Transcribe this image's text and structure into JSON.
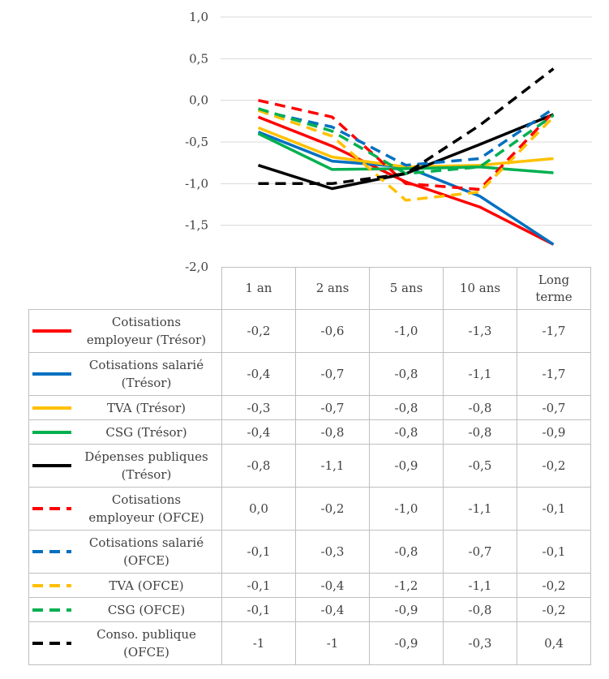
{
  "chart_data": {
    "type": "line",
    "categories": [
      "1 an",
      "2 ans",
      "5 ans",
      "10 ans",
      "Long terme"
    ],
    "ylim": [
      -2.0,
      1.0
    ],
    "yticks": [
      "1,0",
      "0,5",
      "0,0",
      "-0,5",
      "-1,0",
      "-1,5",
      "-2,0"
    ],
    "ytick_values": [
      1.0,
      0.5,
      0.0,
      -0.5,
      -1.0,
      -1.5,
      -2.0
    ],
    "grid": true,
    "legend": "data table below chart",
    "series": [
      {
        "name": "Cotisations employeur (Trésor)",
        "color": "#ff0000",
        "style": "solid",
        "values": [
          -0.2,
          -0.55,
          -0.98,
          -1.28,
          -1.73
        ],
        "labels": [
          "-0,2",
          "-0,6",
          "-1,0",
          "-1,3",
          "-1,7"
        ]
      },
      {
        "name": "Cotisations salarié (Trésor)",
        "color": "#0070c0",
        "style": "solid",
        "values": [
          -0.38,
          -0.73,
          -0.8,
          -1.15,
          -1.73
        ],
        "labels": [
          "-0,4",
          "-0,7",
          "-0,8",
          "-1,1",
          "-1,7"
        ]
      },
      {
        "name": "TVA (Trésor)",
        "color": "#ffc000",
        "style": "solid",
        "values": [
          -0.33,
          -0.68,
          -0.8,
          -0.78,
          -0.7
        ],
        "labels": [
          "-0,3",
          "-0,7",
          "-0,8",
          "-0,8",
          "-0,7"
        ]
      },
      {
        "name": "CSG (Trésor)",
        "color": "#00b050",
        "style": "solid",
        "values": [
          -0.4,
          -0.83,
          -0.82,
          -0.8,
          -0.87
        ],
        "labels": [
          "-0,4",
          "-0,8",
          "-0,8",
          "-0,8",
          "-0,9"
        ]
      },
      {
        "name": "Dépenses publiques (Trésor)",
        "color": "#000000",
        "style": "solid",
        "values": [
          -0.78,
          -1.06,
          -0.88,
          -0.53,
          -0.17
        ],
        "labels": [
          "-0,8",
          "-1,1",
          "-0,9",
          "-0,5",
          "-0,2"
        ]
      },
      {
        "name": "Cotisations employeur (OFCE)",
        "color": "#ff0000",
        "style": "dashed",
        "values": [
          0.0,
          -0.2,
          -1.0,
          -1.07,
          -0.14
        ],
        "labels": [
          "0,0",
          "-0,2",
          "-1,0",
          "-1,1",
          "-0,1"
        ]
      },
      {
        "name": "Cotisations salarié (OFCE)",
        "color": "#0070c0",
        "style": "dashed",
        "values": [
          -0.12,
          -0.32,
          -0.78,
          -0.7,
          -0.1
        ],
        "labels": [
          "-0,1",
          "-0,3",
          "-0,8",
          "-0,7",
          "-0,1"
        ]
      },
      {
        "name": "TVA (OFCE)",
        "color": "#ffc000",
        "style": "dashed",
        "values": [
          -0.12,
          -0.43,
          -1.2,
          -1.1,
          -0.2
        ],
        "labels": [
          "-0,1",
          "-0,4",
          "-1,2",
          "-1,1",
          "-0,2"
        ]
      },
      {
        "name": "CSG (OFCE)",
        "color": "#00b050",
        "style": "dashed",
        "values": [
          -0.1,
          -0.37,
          -0.88,
          -0.8,
          -0.18
        ],
        "labels": [
          "-0,1",
          "-0,4",
          "-0,9",
          "-0,8",
          "-0,2"
        ]
      },
      {
        "name": "Conso. publique (OFCE)",
        "color": "#000000",
        "style": "dashed",
        "values": [
          -1.0,
          -1.0,
          -0.88,
          -0.3,
          0.38
        ],
        "labels": [
          "-1",
          "-1",
          "-0,9",
          "-0,3",
          "0,4"
        ]
      }
    ]
  },
  "table": {
    "headers": [
      [
        "1 an"
      ],
      [
        "2 ans"
      ],
      [
        "5 ans"
      ],
      [
        "10 ans"
      ],
      [
        "Long",
        "terme"
      ]
    ],
    "legend_lines": [
      [
        "Cotisations",
        "employeur (Trésor)"
      ],
      [
        "Cotisations salarié",
        "(Trésor)"
      ],
      [
        "TVA (Trésor)"
      ],
      [
        "CSG (Trésor)"
      ],
      [
        "Dépenses publiques",
        "(Trésor)"
      ],
      [
        "Cotisations",
        "employeur (OFCE)"
      ],
      [
        "Cotisations salarié",
        "(OFCE)"
      ],
      [
        "TVA (OFCE)"
      ],
      [
        "CSG (OFCE)"
      ],
      [
        "Conso. publique",
        "(OFCE)"
      ]
    ]
  }
}
